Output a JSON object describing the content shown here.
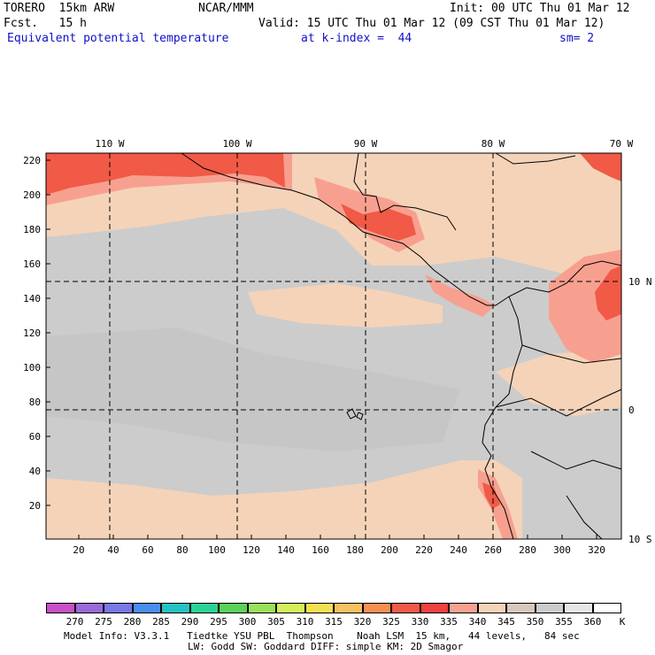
{
  "header": {
    "model": "TORERO  15km ARW",
    "center": "NCAR/MMM",
    "init": "Init: 00 UTC Thu 01 Mar 12",
    "fcst": "Fcst.   15 h",
    "valid": "Valid: 15 UTC Thu 01 Mar 12 (09 CST Thu 01 Mar 12)",
    "field": "Equivalent potential temperature",
    "level": "at k-index =  44",
    "smooth": "sm= 2"
  },
  "map": {
    "lon_labels": [
      "110 W",
      "100 W",
      "90 W",
      "80 W",
      "70 W"
    ],
    "lat_labels": [
      "10 N",
      "0",
      "10 S"
    ],
    "y_ticks": [
      "220",
      "200",
      "180",
      "160",
      "140",
      "120",
      "100",
      "80",
      "60",
      "40",
      "20"
    ],
    "x_ticks": [
      "20",
      "40",
      "60",
      "80",
      "100",
      "120",
      "140",
      "160",
      "180",
      "200",
      "220",
      "240",
      "260",
      "280",
      "300",
      "320"
    ]
  },
  "colorbar": {
    "unit": "K",
    "labels": [
      "270",
      "275",
      "280",
      "285",
      "290",
      "295",
      "300",
      "305",
      "310",
      "315",
      "320",
      "325",
      "330",
      "335",
      "340",
      "345",
      "350",
      "355",
      "360"
    ],
    "colors": [
      "#c850c8",
      "#9a6ad8",
      "#7878e6",
      "#4a8ef0",
      "#26c2c2",
      "#2ad296",
      "#5ad25a",
      "#9ae05a",
      "#d2f05a",
      "#f5e050",
      "#f8c060",
      "#f69050",
      "#f05a46",
      "#f04040",
      "#f8a090",
      "#f5d3b8",
      "#d8c8bc",
      "#cccccc",
      "#e6e6e6",
      "#ffffff"
    ]
  },
  "footer": {
    "line1": "Model Info: V3.3.1   Tiedtke YSU PBL  Thompson    Noah LSM  15 km,   44 levels,   84 sec",
    "line2": "LW: Godd SW: Goddard DIFF: simple KM: 2D Smagor"
  }
}
